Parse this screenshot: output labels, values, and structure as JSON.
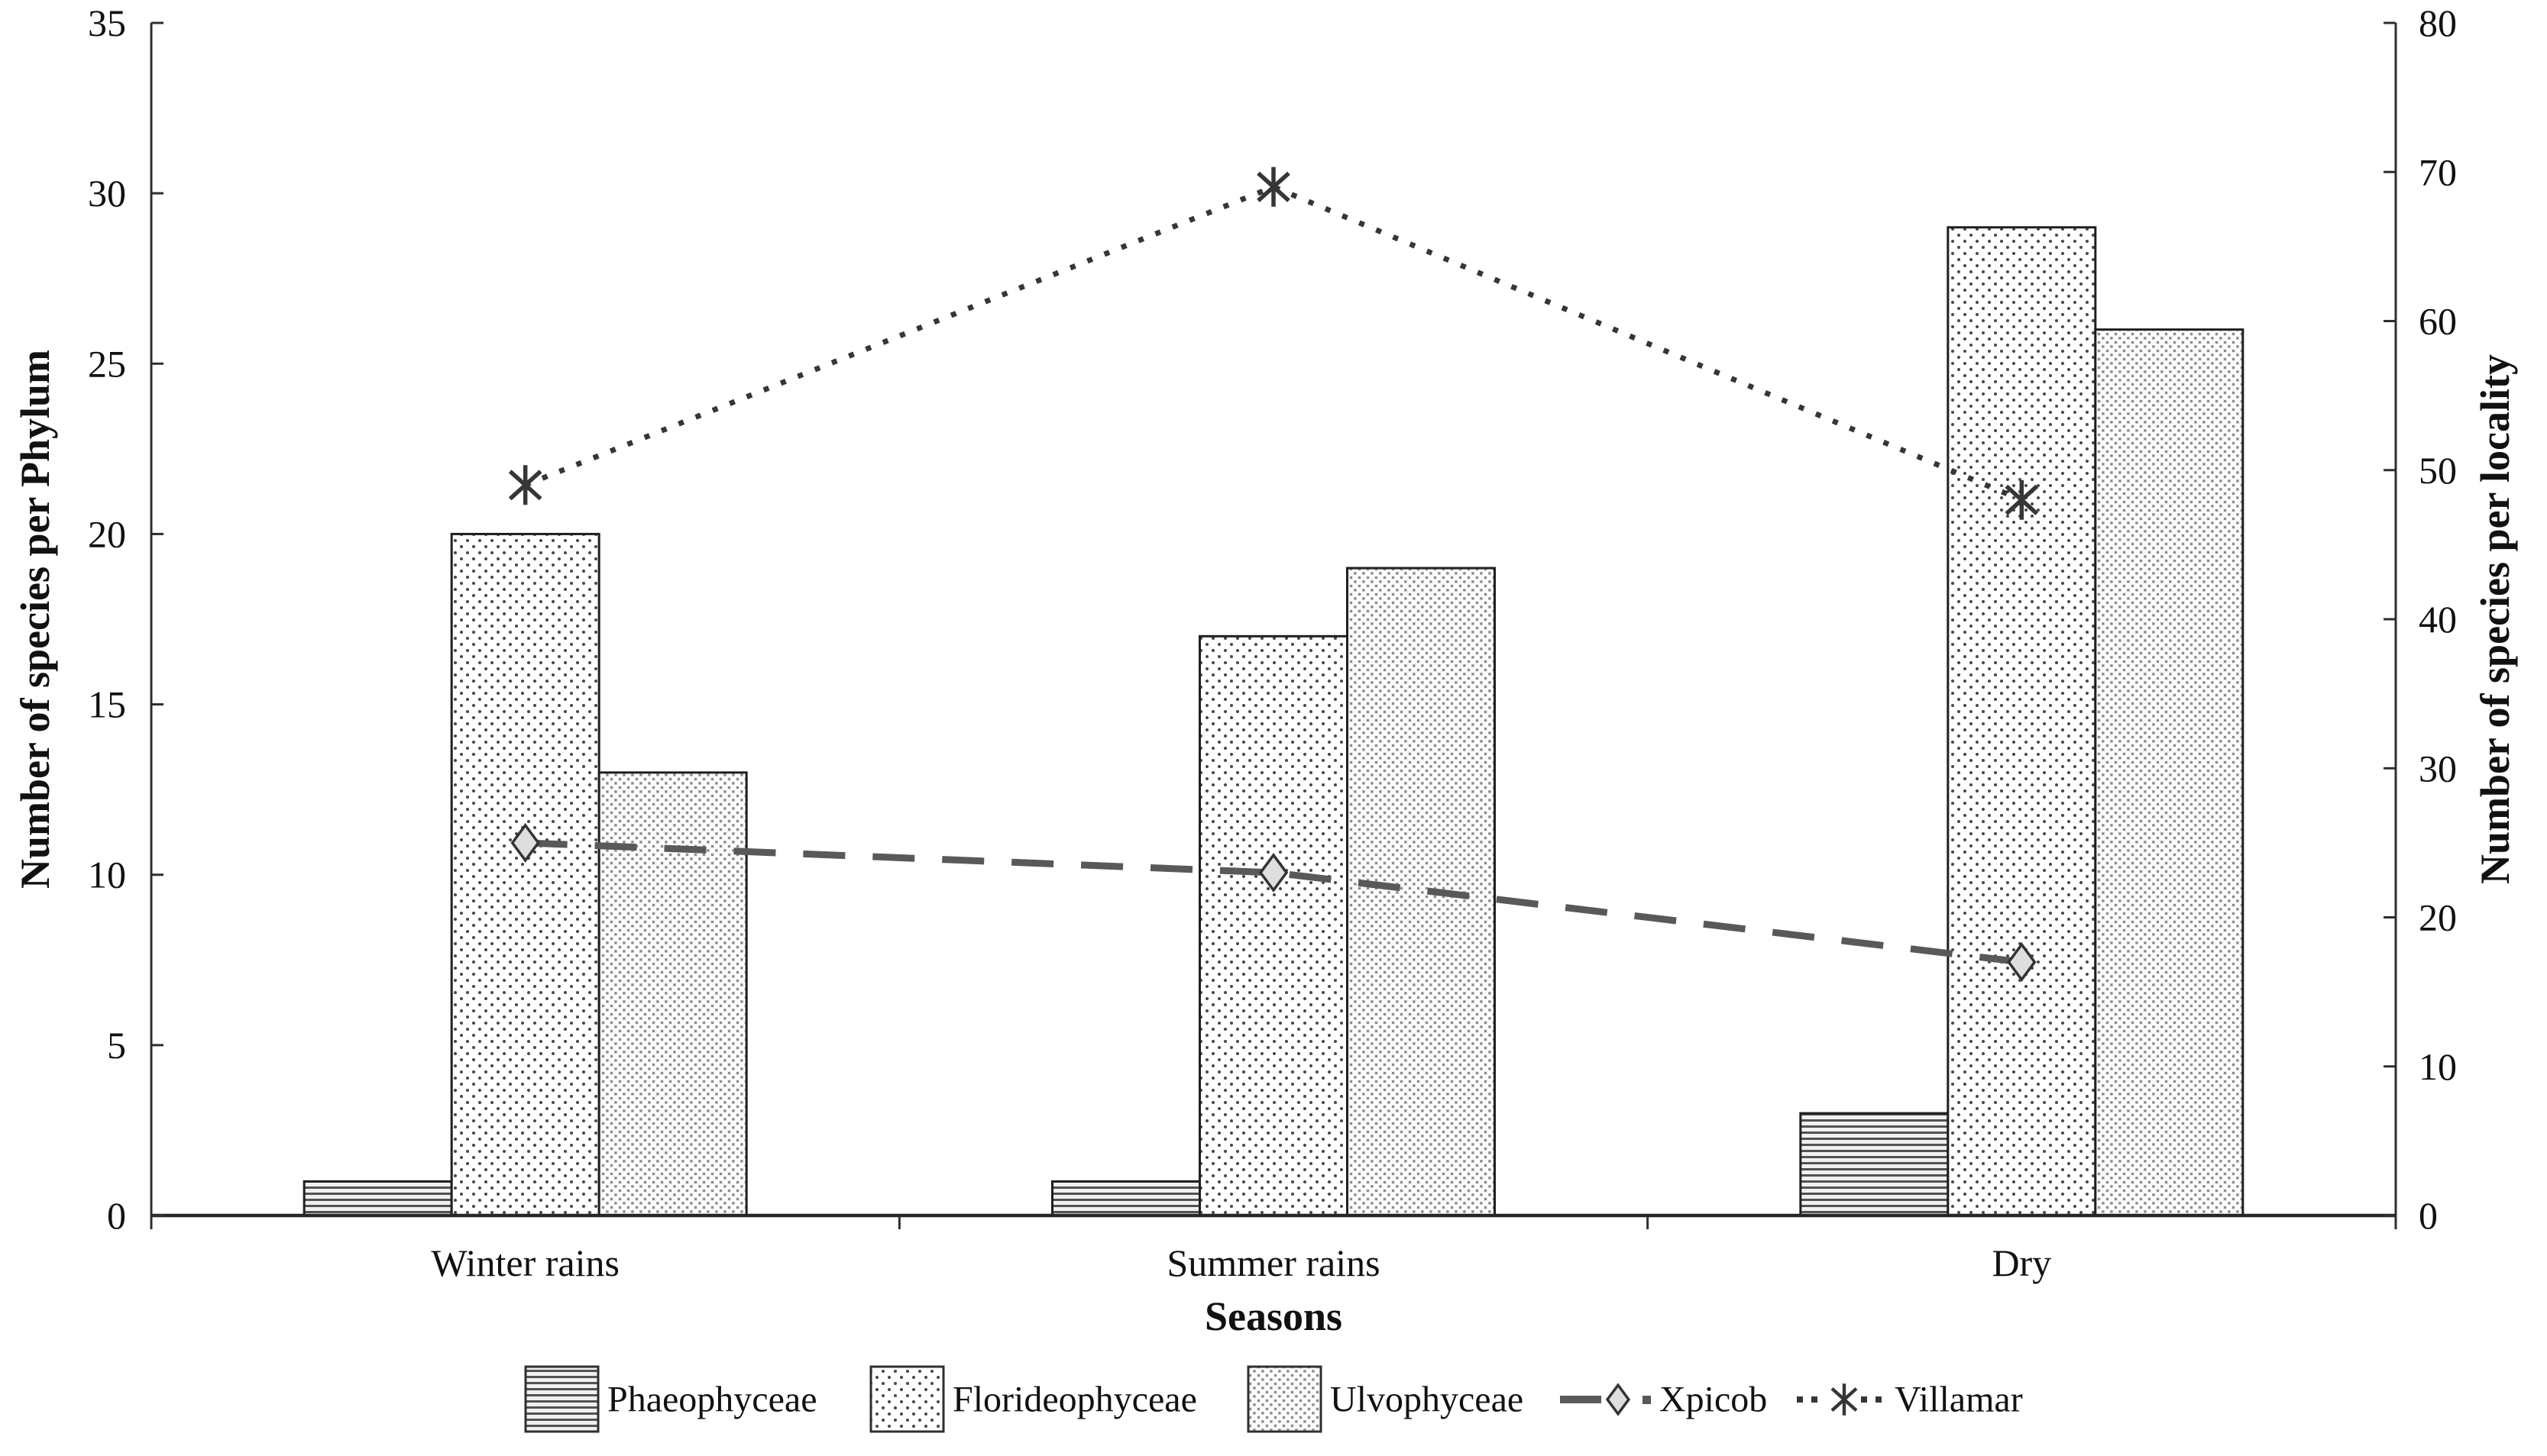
{
  "chart_data": {
    "type": "combo-bar-line",
    "categories": [
      "Winter rains",
      "Summer rains",
      "Dry"
    ],
    "bar_series": [
      {
        "name": "Phaeophyceae",
        "values": [
          1,
          1,
          3
        ],
        "pattern": "horizontal-stripes",
        "fill_color": "#f0f0f0",
        "accent_color": "#525252"
      },
      {
        "name": "Florideophyceae",
        "values": [
          20,
          17,
          29
        ],
        "pattern": "sparse-dots",
        "fill_color": "#ffffff",
        "accent_color": "#474747"
      },
      {
        "name": "Ulvophyceae",
        "values": [
          13,
          19,
          26
        ],
        "pattern": "dense-dots",
        "fill_color": "#fcfcfc",
        "accent_color": "#8c8c8c"
      }
    ],
    "line_series": [
      {
        "name": "Xpicob",
        "values": [
          25,
          23,
          17
        ],
        "axis": "right",
        "style": "dashed",
        "marker": "diamond",
        "color": "#595959",
        "marker_fill": "#dedede"
      },
      {
        "name": "Villamar",
        "values": [
          49,
          69,
          48
        ],
        "axis": "right",
        "style": "dotted",
        "marker": "asterisk",
        "color": "#363636",
        "marker_fill": "#363636"
      }
    ],
    "left_axis": {
      "label": "Number of species per Phylum",
      "min": 0,
      "max": 35,
      "step": 5,
      "ticks": [
        0,
        5,
        10,
        15,
        20,
        25,
        30,
        35
      ]
    },
    "right_axis": {
      "label": "Number of species per locality",
      "min": 0,
      "max": 80,
      "step": 10,
      "ticks": [
        0,
        10,
        20,
        30,
        40,
        50,
        60,
        70,
        80
      ]
    },
    "x_axis": {
      "label": "Seasons"
    },
    "legend": [
      "Phaeophyceae",
      "Florideophyceae",
      "Ulvophyceae",
      "Xpicob",
      "Villamar"
    ],
    "legend_position": "bottom",
    "grid": false,
    "background": "#ffffff",
    "text_color": "#111111",
    "axis_color": "#2f2f2f"
  }
}
